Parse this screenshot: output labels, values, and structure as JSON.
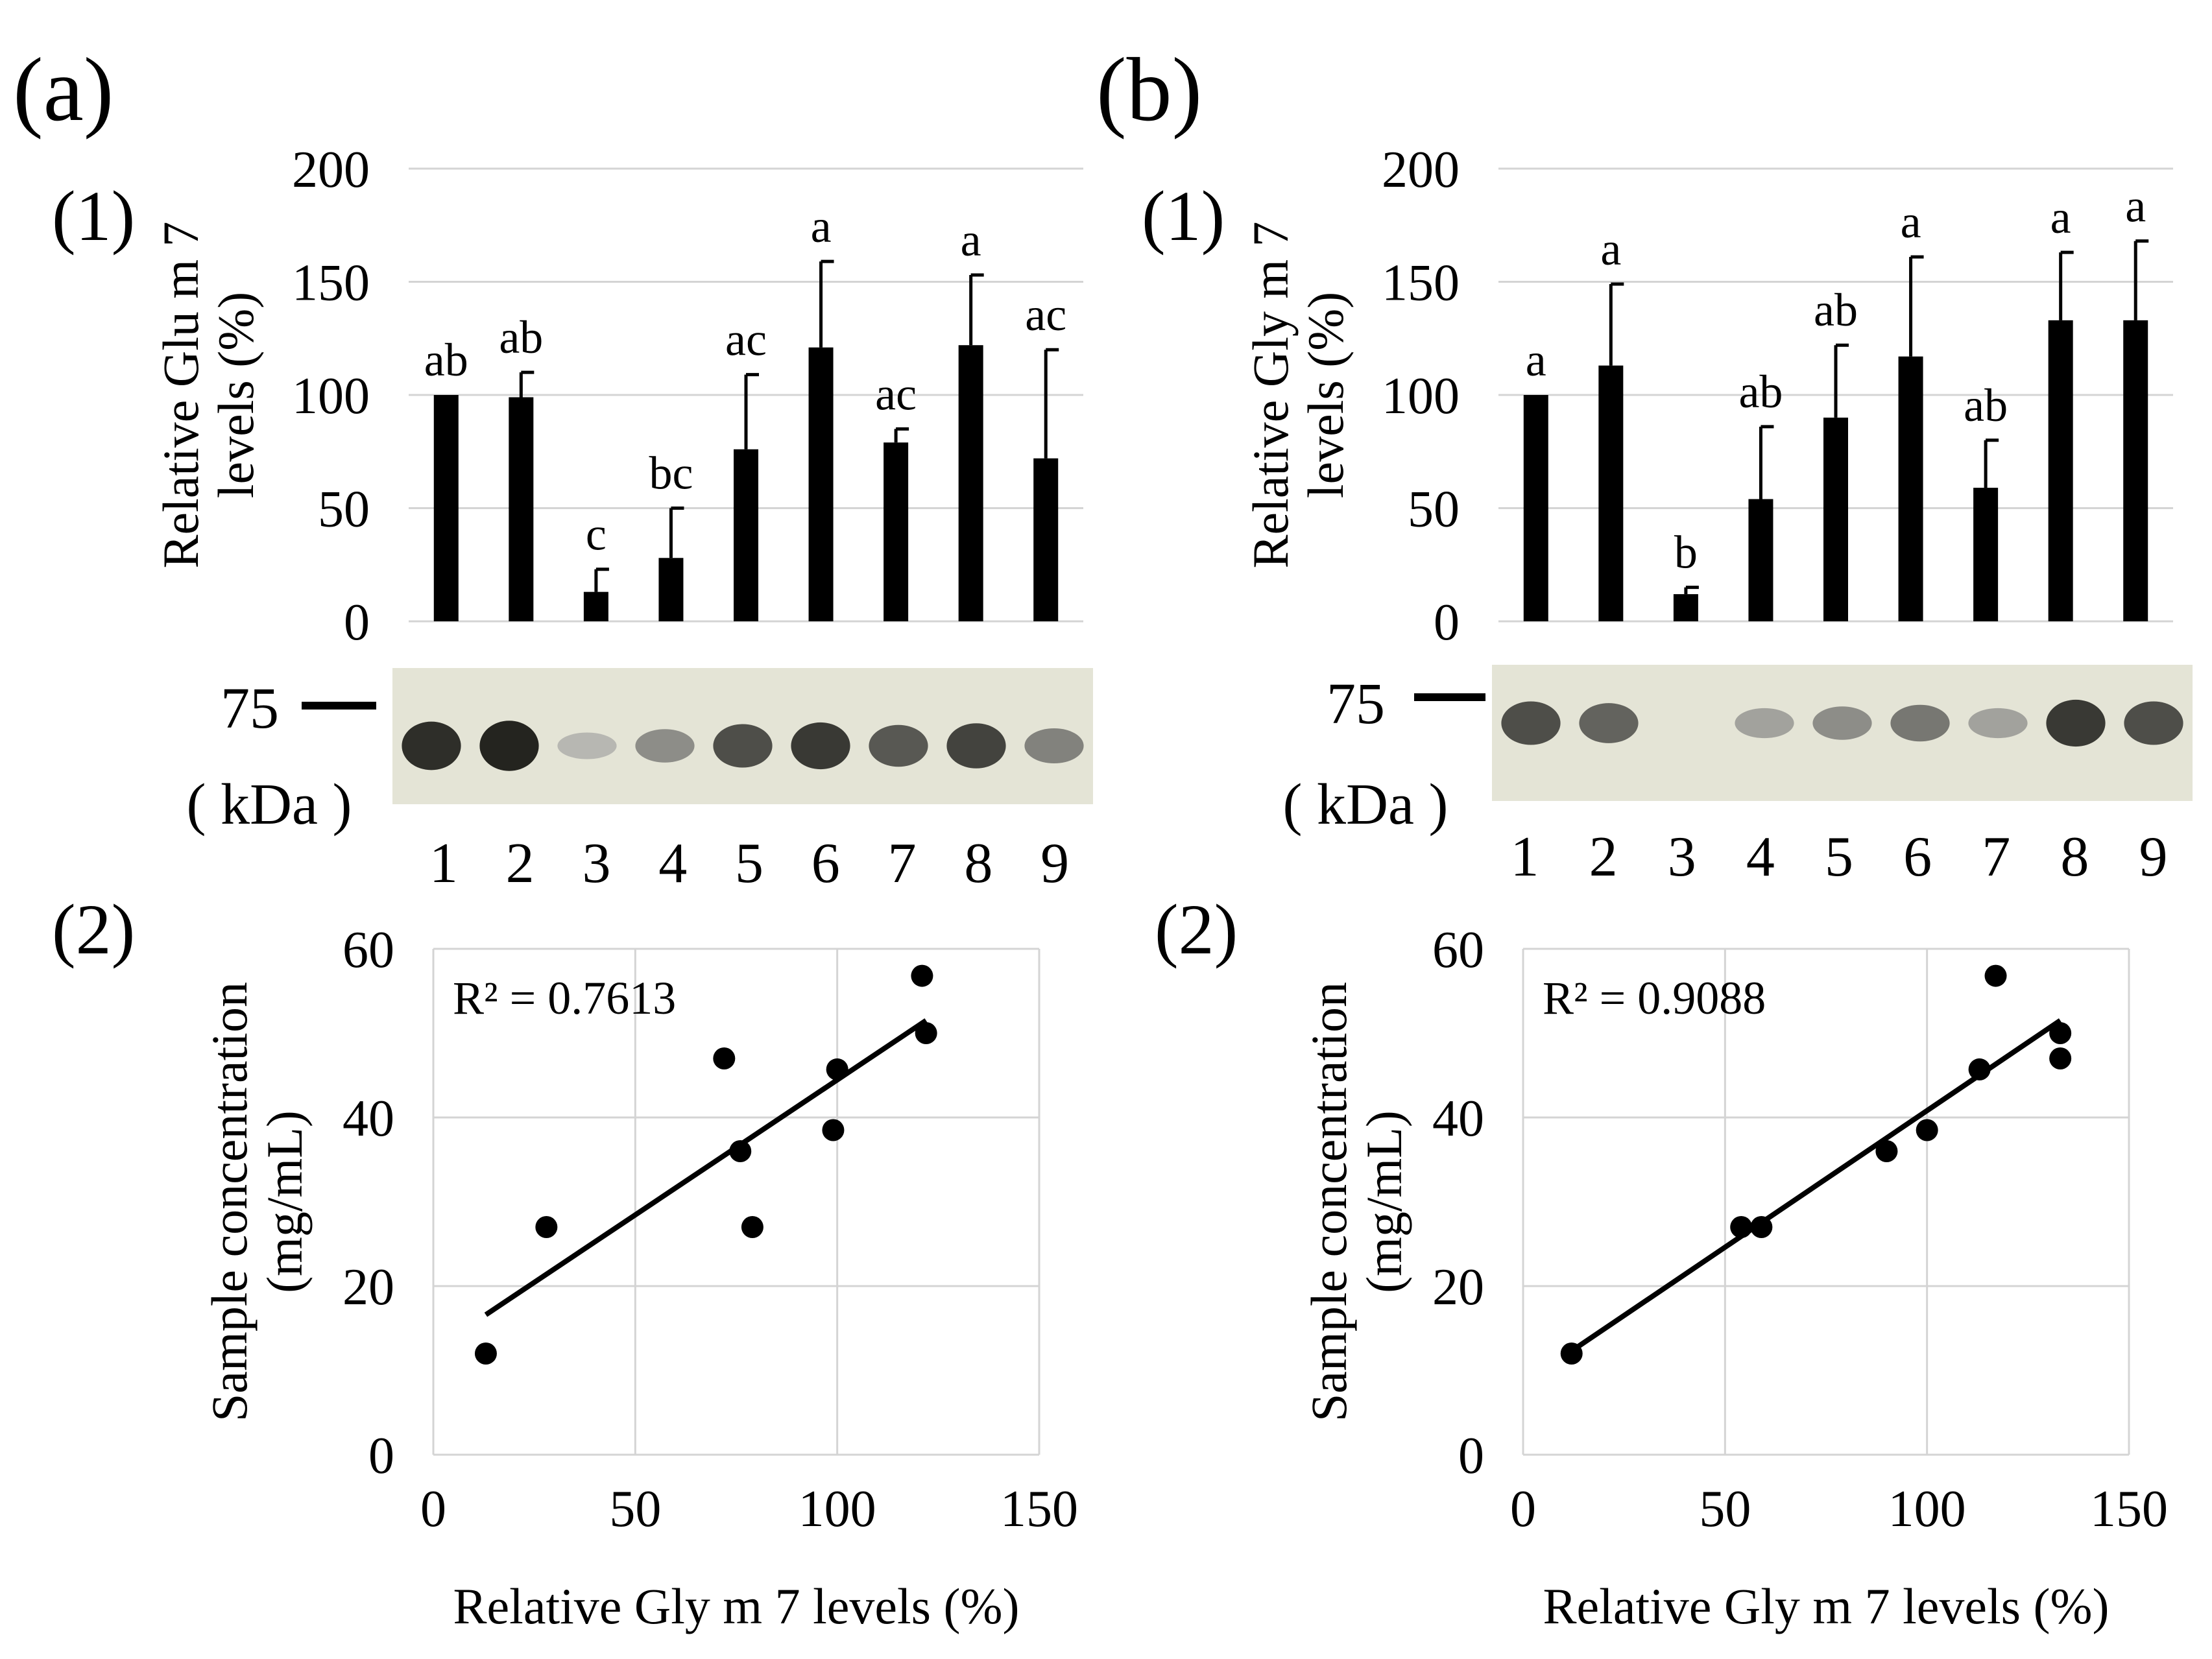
{
  "panels": [
    {
      "letter": "(a)",
      "sub1": "(1)",
      "sub2": "(2)",
      "blot": {
        "marker": "75",
        "unit": "( kDa )",
        "lanes": [
          "1",
          "2",
          "3",
          "4",
          "5",
          "6",
          "7",
          "8",
          "9"
        ],
        "intensity": [
          0.9,
          0.95,
          0.25,
          0.45,
          0.75,
          0.85,
          0.7,
          0.8,
          0.5
        ]
      }
    },
    {
      "letter": "(b)",
      "sub1": "(1)",
      "sub2": "(2)",
      "blot": {
        "marker": "75",
        "unit": "( kDa )",
        "lanes": [
          "1",
          "2",
          "3",
          "4",
          "5",
          "6",
          "7",
          "8",
          "9"
        ],
        "intensity": [
          0.75,
          0.65,
          0.0,
          0.35,
          0.45,
          0.55,
          0.35,
          0.85,
          0.75
        ]
      }
    }
  ],
  "chart_data": [
    {
      "type": "bar",
      "panel": "(a)(1)",
      "ylabel_line1": "Relative Glu m 7",
      "ylabel_line2": "levels (%)",
      "categories": [
        "1",
        "2",
        "3",
        "4",
        "5",
        "6",
        "7",
        "8",
        "9"
      ],
      "values": [
        100,
        99,
        13,
        28,
        76,
        121,
        79,
        122,
        72
      ],
      "errors": [
        0,
        11,
        10,
        22,
        33,
        38,
        6,
        31,
        48
      ],
      "letters": [
        "ab",
        "ab",
        "c",
        "bc",
        "ac",
        "a",
        "ac",
        "a",
        "ac"
      ],
      "ylim": [
        0,
        200
      ],
      "yticks": [
        "0",
        "50",
        "100",
        "150",
        "200"
      ],
      "grid": true
    },
    {
      "type": "bar",
      "panel": "(b)(1)",
      "ylabel_line1": "Relative Gly m 7",
      "ylabel_line2": "levels (%)",
      "categories": [
        "1",
        "2",
        "3",
        "4",
        "5",
        "6",
        "7",
        "8",
        "9"
      ],
      "values": [
        100,
        113,
        12,
        54,
        90,
        117,
        59,
        133,
        133
      ],
      "errors": [
        0,
        36,
        3,
        32,
        32,
        44,
        21,
        30,
        35
      ],
      "letters": [
        "a",
        "a",
        "b",
        "ab",
        "ab",
        "a",
        "ab",
        "a",
        "a"
      ],
      "ylim": [
        0,
        200
      ],
      "yticks": [
        "0",
        "50",
        "100",
        "150",
        "200"
      ],
      "grid": true
    },
    {
      "type": "scatter",
      "panel": "(a)(2)",
      "annotation": "R² = 0.7613",
      "xlabel": "Relative Gly m 7 levels (%)",
      "ylabel_line1": "Sample concentration",
      "ylabel_line2": "(mg/mL)",
      "points": [
        [
          100,
          45.7
        ],
        [
          99,
          38.5
        ],
        [
          13,
          12
        ],
        [
          28,
          27
        ],
        [
          76,
          36
        ],
        [
          121,
          56.8
        ],
        [
          79,
          27
        ],
        [
          122,
          50
        ],
        [
          72,
          47
        ]
      ],
      "trendline": [
        [
          13,
          16.6
        ],
        [
          122,
          51.5
        ]
      ],
      "xlim": [
        0,
        150
      ],
      "ylim": [
        0,
        60
      ],
      "xticks": [
        "0",
        "50",
        "100",
        "150"
      ],
      "yticks": [
        "0",
        "20",
        "40",
        "60"
      ],
      "grid": true
    },
    {
      "type": "scatter",
      "panel": "(b)(2)",
      "annotation": "R² = 0.9088",
      "xlabel": "Relative Gly m 7 levels (%)",
      "ylabel_line1": "Sample concentration",
      "ylabel_line2": "(mg/mL)",
      "points": [
        [
          100,
          38.5
        ],
        [
          113,
          45.7
        ],
        [
          12,
          12
        ],
        [
          54,
          27
        ],
        [
          90,
          36
        ],
        [
          117,
          56.8
        ],
        [
          59,
          27
        ],
        [
          133,
          50
        ],
        [
          133,
          47
        ]
      ],
      "trendline": [
        [
          12,
          12.3
        ],
        [
          133,
          51.5
        ]
      ],
      "xlim": [
        0,
        150
      ],
      "ylim": [
        0,
        60
      ],
      "xticks": [
        "0",
        "50",
        "100",
        "150"
      ],
      "yticks": [
        "0",
        "20",
        "40",
        "60"
      ],
      "grid": true
    }
  ]
}
